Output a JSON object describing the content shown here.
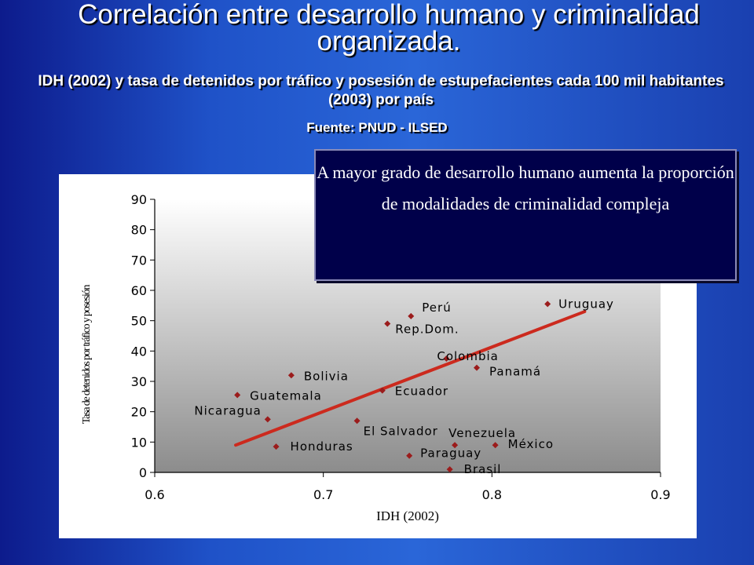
{
  "slide": {
    "title": "Correlación entre desarrollo humano y criminalidad organizada.",
    "subtitle": "IDH (2002) y tasa de detenidos por tráfico y posesión de estupefacientes cada 100 mil habitantes (2003) por país",
    "source": "Fuente: PNUD - ILSED",
    "callout": "A mayor grado de desarrollo humano aumenta la proporción de modalidades de criminalidad compleja"
  },
  "colors": {
    "marker": "#9b1c1c",
    "trendline": "#cc2a1e",
    "callout_bg": "#00004a"
  },
  "chart_data": {
    "type": "scatter",
    "xlabel": "IDH (2002)",
    "ylabel": "Tasa de detenidos por tráfico y posesión",
    "xlim": [
      0.6,
      0.9
    ],
    "ylim": [
      0,
      90
    ],
    "xticks": [
      "0.6",
      "0.7",
      "0.8",
      "0.9"
    ],
    "yticks": [
      "0",
      "10",
      "20",
      "30",
      "40",
      "50",
      "60",
      "70",
      "80",
      "90"
    ],
    "grid": false,
    "points": [
      {
        "label": "Uruguay",
        "x": 0.833,
        "y": 55.5
      },
      {
        "label": "Perú",
        "x": 0.752,
        "y": 51.5
      },
      {
        "label": "Rep.Dom.",
        "x": 0.738,
        "y": 49
      },
      {
        "label": "Colombia",
        "x": 0.773,
        "y": 37.5
      },
      {
        "label": "Panamá",
        "x": 0.791,
        "y": 34.5
      },
      {
        "label": "Bolivia",
        "x": 0.681,
        "y": 32
      },
      {
        "label": "Ecuador",
        "x": 0.735,
        "y": 27
      },
      {
        "label": "Guatemala",
        "x": 0.649,
        "y": 25.5
      },
      {
        "label": "Nicaragua",
        "x": 0.667,
        "y": 17.5
      },
      {
        "label": "El Salvador",
        "x": 0.72,
        "y": 17
      },
      {
        "label": "Venezuela",
        "x": 0.778,
        "y": 9
      },
      {
        "label": "México",
        "x": 0.802,
        "y": 9
      },
      {
        "label": "Honduras",
        "x": 0.672,
        "y": 8.5
      },
      {
        "label": "Paraguay",
        "x": 0.751,
        "y": 5.5
      },
      {
        "label": "Brasil",
        "x": 0.775,
        "y": 1
      }
    ],
    "trendline": {
      "x": [
        0.648,
        0.855
      ],
      "y": [
        9,
        53
      ]
    }
  }
}
